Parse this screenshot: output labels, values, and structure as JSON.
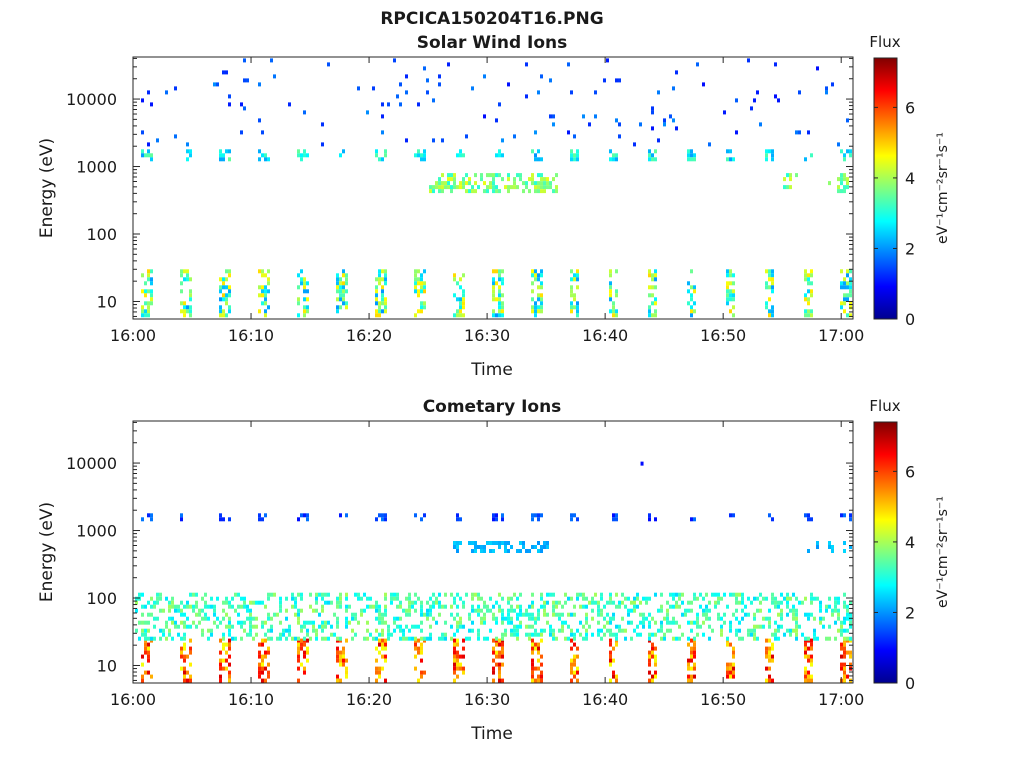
{
  "figure_title": "RPCICA150204T16.PNG",
  "colorbar": {
    "title": "Flux",
    "units_label": "eV⁻¹cm⁻²sr⁻¹s⁻¹",
    "range": [
      0,
      7.4
    ],
    "ticks": [
      "0",
      "2",
      "4",
      "6"
    ],
    "colormap": "jet"
  },
  "chart_data": [
    {
      "type": "heatmap",
      "title": "Solar Wind Ions",
      "xlabel": "Time",
      "ylabel": "Energy (eV)",
      "x_range": [
        "16:00",
        "17:01"
      ],
      "x_ticks": [
        "16:00",
        "16:10",
        "16:20",
        "16:30",
        "16:40",
        "16:50",
        "17:00"
      ],
      "y_scale": "log",
      "y_range": [
        5.5,
        42000
      ],
      "y_ticks": [
        "10",
        "100",
        "1000",
        "10000"
      ],
      "z_label": "Flux",
      "z_range": [
        0,
        7.4
      ],
      "features": [
        {
          "band_eV": [
            6,
            30
          ],
          "flux": [
            2,
            5
          ],
          "pattern": "periodic bursts about every 3.3 min"
        },
        {
          "band_eV": [
            1200,
            1800
          ],
          "flux": [
            2,
            3.5
          ],
          "pattern": "periodic blobs about every 3.3 min"
        },
        {
          "band_eV": [
            400,
            800
          ],
          "flux": [
            3,
            4.5
          ],
          "pattern": "intermittent, mainly 16:25-16:36 and late 16:50s"
        },
        {
          "band_eV": [
            2000,
            40000
          ],
          "flux": [
            1,
            2
          ],
          "pattern": "sparse scattered pixels"
        }
      ]
    },
    {
      "type": "heatmap",
      "title": "Cometary Ions",
      "xlabel": "Time",
      "ylabel": "Energy (eV)",
      "x_range": [
        "16:00",
        "17:01"
      ],
      "x_ticks": [
        "16:00",
        "16:10",
        "16:20",
        "16:30",
        "16:40",
        "16:50",
        "17:00"
      ],
      "y_scale": "log",
      "y_range": [
        5.5,
        42000
      ],
      "y_ticks": [
        "10",
        "100",
        "1000",
        "10000"
      ],
      "z_label": "Flux",
      "z_range": [
        0,
        7.4
      ],
      "features": [
        {
          "band_eV": [
            6,
            25
          ],
          "flux": [
            4.5,
            6.8
          ],
          "pattern": "strong periodic bursts about every 3.3 min"
        },
        {
          "band_eV": [
            25,
            120
          ],
          "flux": [
            2.5,
            4
          ],
          "pattern": "near-continuous band"
        },
        {
          "band_eV": [
            1400,
            1800
          ],
          "flux": [
            1,
            1.8
          ],
          "pattern": "periodic small blobs"
        },
        {
          "band_eV": [
            500,
            700
          ],
          "flux": [
            2,
            2.5
          ],
          "pattern": "occasional, 16:27-16:35"
        },
        {
          "band_eV": [
            10000,
            11000
          ],
          "flux": [
            1,
            1.2
          ],
          "pattern": "single pixel near 16:43"
        }
      ]
    }
  ]
}
